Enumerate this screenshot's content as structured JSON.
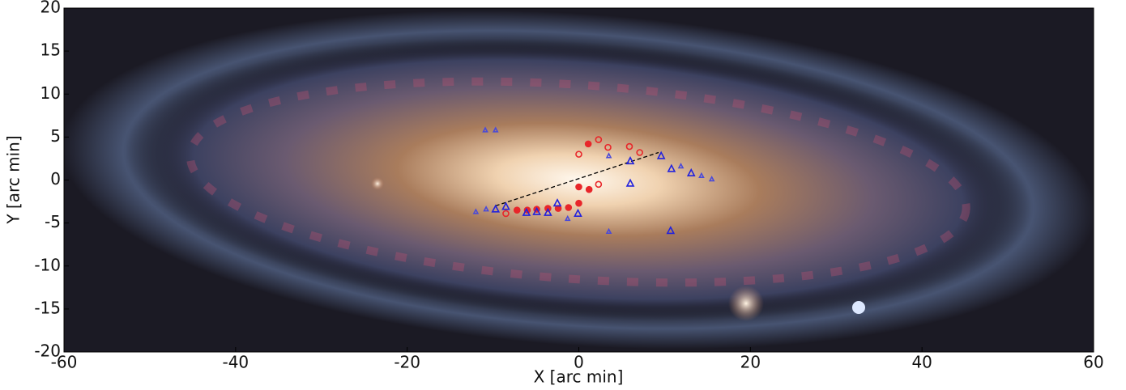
{
  "chart_data": {
    "type": "scatter",
    "xlabel": "X [arc min]",
    "ylabel": "Y [arc min]",
    "xlim": [
      -60,
      60
    ],
    "xticks": [
      -60,
      -40,
      -20,
      0,
      20,
      40,
      60
    ],
    "ylim": [
      -20,
      20
    ],
    "yticks": [
      -20,
      -15,
      -10,
      -5,
      0,
      5,
      10,
      15,
      20
    ],
    "series": [
      {
        "marker": "circle",
        "filled": true,
        "color": "#e8262a",
        "size": 7,
        "x": [
          1.1,
          1.2,
          0,
          0,
          -1.2,
          -2.4,
          -3.6,
          -4.9,
          -6.0,
          -7.2
        ],
        "y": [
          4.2,
          -1.1,
          -0.8,
          -2.7,
          -3.2,
          -3.3,
          -3.3,
          -3.4,
          -3.5,
          -3.5
        ]
      },
      {
        "marker": "circle",
        "filled": false,
        "color": "#e8262a",
        "size": 7,
        "x": [
          2.3,
          3.4,
          5.9,
          7.1,
          2.3,
          -8.5,
          0
        ],
        "y": [
          4.7,
          3.8,
          3.9,
          3.2,
          -0.5,
          -3.9,
          3.0
        ]
      },
      {
        "marker": "triangle",
        "filled": false,
        "color": "#2222dd",
        "size": 8,
        "x": [
          -9.7,
          -8.5,
          -6.1,
          -4.9,
          -3.6,
          -2.5,
          -0.1,
          6.0,
          6.0,
          9.6,
          10.8,
          13.1,
          10.7
        ],
        "y": [
          -3.4,
          -3.1,
          -3.8,
          -3.7,
          -3.8,
          -2.7,
          -3.9,
          -0.4,
          2.2,
          2.8,
          1.3,
          0.8,
          -5.9
        ]
      },
      {
        "marker": "triangle",
        "filled": false,
        "color": "#4a4ad8",
        "size": 5,
        "x": [
          -10.9,
          -9.7,
          -12.0,
          -10.8,
          -1.3,
          3.5,
          3.5,
          11.9,
          14.3,
          15.5
        ],
        "y": [
          5.8,
          5.8,
          -3.7,
          -3.4,
          -4.5,
          2.8,
          -6.0,
          1.6,
          0.5,
          0.1
        ]
      }
    ],
    "lines": [
      {
        "x": [
          -9.7,
          9.3
        ],
        "y": [
          -3.0,
          3.2
        ],
        "color": "#000000",
        "dashed": true
      }
    ]
  }
}
